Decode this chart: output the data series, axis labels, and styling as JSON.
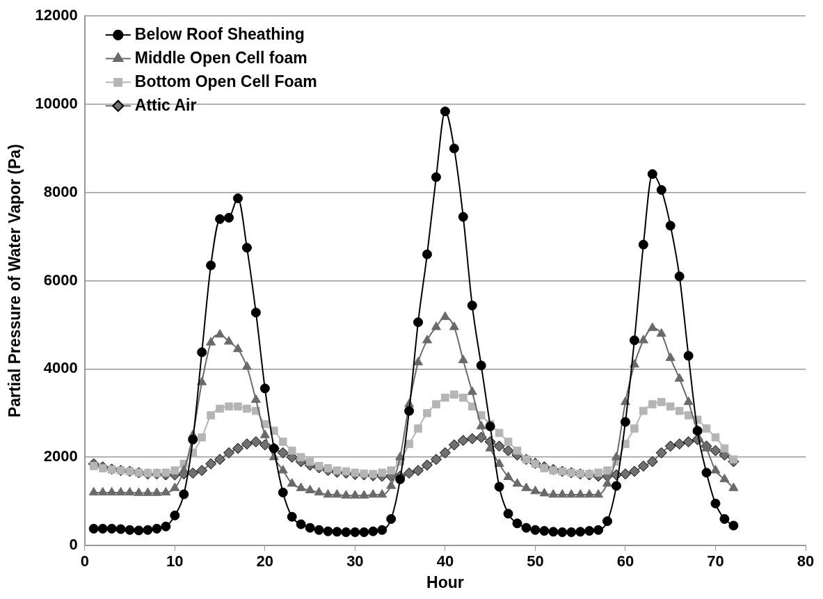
{
  "chart_data": {
    "type": "line",
    "xlabel": "Hour",
    "ylabel": "Partial Pressure of Water Vapor (Pa)",
    "x": [
      1,
      2,
      3,
      4,
      5,
      6,
      7,
      8,
      9,
      10,
      11,
      12,
      13,
      14,
      15,
      16,
      17,
      18,
      19,
      20,
      21,
      22,
      23,
      24,
      25,
      26,
      27,
      28,
      29,
      30,
      31,
      32,
      33,
      34,
      35,
      36,
      37,
      38,
      39,
      40,
      41,
      42,
      43,
      44,
      45,
      46,
      47,
      48,
      49,
      50,
      51,
      52,
      53,
      54,
      55,
      56,
      57,
      58,
      59,
      60,
      61,
      62,
      63,
      64,
      65,
      66,
      67,
      68,
      69,
      70,
      71,
      72
    ],
    "series": [
      {
        "name": "Below Roof Sheathing",
        "color": "#000000",
        "marker": "circle",
        "values": [
          380,
          380,
          380,
          370,
          350,
          340,
          350,
          380,
          430,
          680,
          1160,
          2400,
          4380,
          6350,
          7400,
          7430,
          7870,
          6750,
          5280,
          3560,
          2200,
          1200,
          650,
          480,
          400,
          350,
          320,
          310,
          300,
          300,
          300,
          320,
          350,
          600,
          1500,
          3050,
          5060,
          6600,
          8350,
          9840,
          9000,
          7450,
          5440,
          4080,
          2700,
          1330,
          720,
          500,
          400,
          350,
          330,
          310,
          300,
          300,
          310,
          330,
          350,
          550,
          1350,
          2800,
          4650,
          6820,
          8420,
          8060,
          7250,
          6100,
          4300,
          2600,
          1650,
          950,
          600,
          450
        ]
      },
      {
        "name": "Middle Open Cell foam",
        "color": "#6a6a6a",
        "marker": "triangle",
        "values": [
          1200,
          1200,
          1200,
          1200,
          1200,
          1190,
          1190,
          1190,
          1200,
          1300,
          1700,
          2500,
          3700,
          4600,
          4780,
          4620,
          4450,
          4050,
          3300,
          2500,
          2000,
          1700,
          1400,
          1300,
          1250,
          1200,
          1150,
          1150,
          1130,
          1130,
          1130,
          1150,
          1150,
          1350,
          2000,
          3200,
          4150,
          4650,
          4950,
          5180,
          4950,
          4200,
          3480,
          2700,
          2200,
          1850,
          1550,
          1400,
          1300,
          1230,
          1180,
          1150,
          1150,
          1150,
          1150,
          1150,
          1150,
          1400,
          2000,
          3250,
          4100,
          4650,
          4930,
          4800,
          4250,
          3780,
          3250,
          2600,
          2200,
          1700,
          1500,
          1300
        ]
      },
      {
        "name": "Bottom Open Cell Foam",
        "color": "#b5b5b5",
        "marker": "square",
        "values": [
          1800,
          1750,
          1720,
          1700,
          1680,
          1650,
          1640,
          1640,
          1650,
          1700,
          1850,
          2100,
          2450,
          2950,
          3100,
          3150,
          3150,
          3100,
          3050,
          2750,
          2600,
          2350,
          2150,
          2000,
          1900,
          1800,
          1750,
          1700,
          1680,
          1650,
          1630,
          1620,
          1650,
          1700,
          1900,
          2300,
          2650,
          3000,
          3200,
          3350,
          3420,
          3350,
          3150,
          2950,
          2750,
          2550,
          2350,
          2150,
          1950,
          1850,
          1750,
          1700,
          1680,
          1650,
          1630,
          1620,
          1650,
          1700,
          1900,
          2300,
          2650,
          3050,
          3200,
          3250,
          3150,
          3050,
          2950,
          2850,
          2650,
          2450,
          2200,
          1950
        ]
      },
      {
        "name": "Attic Air",
        "color": "#707070",
        "marker": "diamond",
        "values": [
          1850,
          1780,
          1730,
          1700,
          1680,
          1650,
          1620,
          1620,
          1600,
          1600,
          1620,
          1640,
          1700,
          1850,
          1950,
          2100,
          2200,
          2300,
          2350,
          2280,
          2200,
          2100,
          2000,
          1900,
          1820,
          1760,
          1700,
          1660,
          1640,
          1610,
          1600,
          1580,
          1570,
          1570,
          1570,
          1640,
          1700,
          1820,
          1950,
          2100,
          2280,
          2380,
          2420,
          2450,
          2350,
          2250,
          2150,
          2050,
          1950,
          1860,
          1780,
          1720,
          1680,
          1650,
          1620,
          1600,
          1570,
          1570,
          1600,
          1620,
          1680,
          1800,
          1900,
          2100,
          2250,
          2300,
          2350,
          2400,
          2250,
          2150,
          2050,
          1900
        ]
      }
    ],
    "xlim": [
      0,
      80
    ],
    "xticks": [
      0,
      10,
      20,
      30,
      40,
      50,
      60,
      70,
      80
    ],
    "ylim": [
      0,
      12000
    ],
    "yticks": [
      0,
      2000,
      4000,
      6000,
      8000,
      10000,
      12000
    ],
    "grid": "y",
    "legend": "top left",
    "line_style": "solid"
  }
}
